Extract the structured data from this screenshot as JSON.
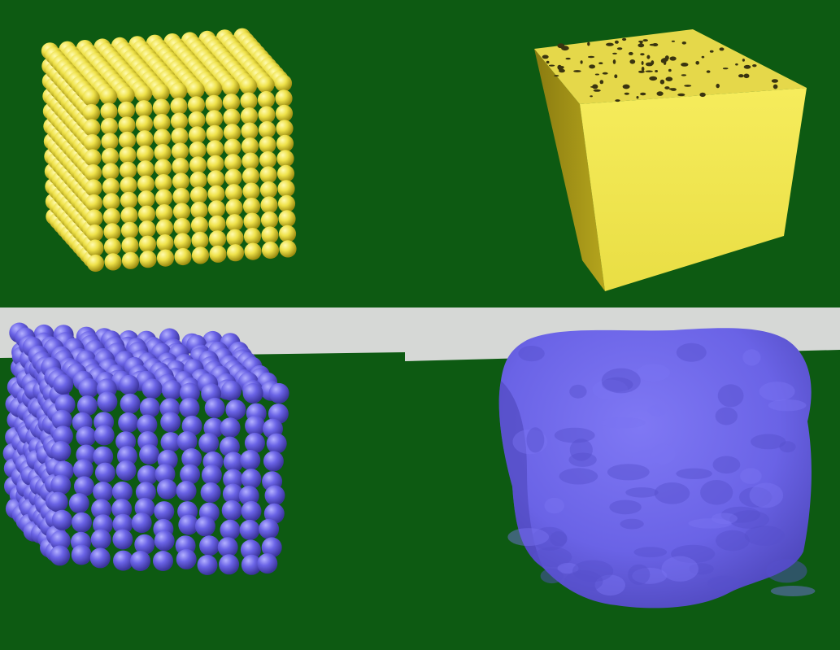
{
  "scene": {
    "colors": {
      "background_green": "#0d5a12",
      "sky_gray": "#d6d8d6",
      "yellow": "#efe24a",
      "yellow_shadow": "#b9a91d",
      "blue": "#6a63e6",
      "blue_shadow": "#413aa8"
    },
    "panels": [
      {
        "id": "top-left",
        "subject": "yellow-sphere-lattice-cube"
      },
      {
        "id": "top-right",
        "subject": "yellow-solid-surface-cube"
      },
      {
        "id": "bottom-left",
        "subject": "blue-sphere-cluster-cube"
      },
      {
        "id": "bottom-right",
        "subject": "blue-smooth-surface-blob"
      }
    ]
  }
}
